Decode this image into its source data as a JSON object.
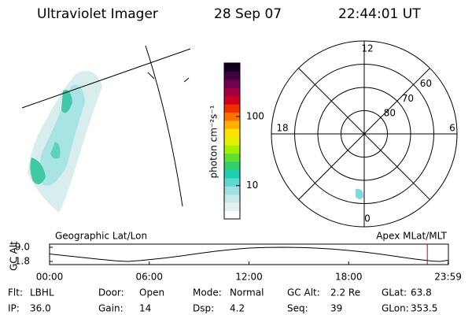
{
  "header": {
    "instrument": "Ultraviolet Imager",
    "date": "28 Sep 07",
    "time": "22:44:01 UT"
  },
  "colorbar": {
    "label": "photon cm⁻²s⁻¹",
    "log": true,
    "lim": [
      3.3,
      594
    ],
    "ticks": [
      10,
      100
    ],
    "colors": [
      "#ffffff",
      "#e6f0f0",
      "#c8e8e8",
      "#a0e0e0",
      "#60d8d0",
      "#20d0b0",
      "#30d070",
      "#60e030",
      "#a0f000",
      "#e0f000",
      "#ffe000",
      "#ffb000",
      "#ff7000",
      "#f03000",
      "#d00020",
      "#a00040",
      "#700050",
      "#400040",
      "#100020"
    ]
  },
  "polar": {
    "mlt_labels": [
      {
        "hour": 12,
        "label": "12"
      },
      {
        "hour": 18,
        "label": "18"
      },
      {
        "hour": 6,
        "label": "6"
      },
      {
        "hour": 0,
        "label": "0"
      }
    ],
    "mlat_range": [
      50,
      90
    ],
    "mlat_ticks": [
      60,
      70,
      80
    ]
  },
  "orbit": {
    "left_label": "Geographic Lat/Lon",
    "right_label": "Apex MLat/MLT",
    "y_label": "GC Alt",
    "ylim": [
      1.8,
      9.0
    ],
    "yticks": [
      {
        "value": 9.0,
        "label": "9.0"
      },
      1.8
    ],
    "xlim": [
      0,
      24
    ],
    "xticks": [
      {
        "value": 0,
        "label": "00:00"
      },
      {
        "value": 6,
        "label": "06:00"
      },
      {
        "value": 12,
        "label": "12:00"
      },
      {
        "value": 18,
        "label": "18:00"
      },
      {
        "value": 23.98,
        "label": "23:59"
      }
    ],
    "hours": [
      0,
      1,
      2,
      3,
      4,
      4.7,
      5.5,
      7,
      8,
      9,
      10,
      11,
      12,
      13,
      14,
      15,
      16,
      17,
      18,
      19,
      20,
      21,
      22,
      23,
      23.5,
      23.98
    ],
    "alt": [
      5.6,
      4.7,
      3.8,
      2.9,
      2.1,
      1.8,
      2.3,
      3.6,
      4.7,
      5.9,
      7.0,
      7.9,
      8.6,
      8.9,
      9.0,
      8.9,
      8.6,
      8.1,
      7.4,
      6.5,
      5.4,
      4.2,
      3.0,
      2.0,
      1.8,
      2.4
    ],
    "current_hour": 22.73,
    "current_color": "#cc0000"
  },
  "info": [
    [
      {
        "label": "Flt:",
        "value": "LBHL"
      },
      {
        "label": "Door:",
        "value": "Open"
      },
      {
        "label": "Mode:",
        "value": "Normal"
      },
      {
        "label": "GC Alt:",
        "value": "2.2 Re"
      },
      {
        "label": "GLat:",
        "value": "63.8"
      }
    ],
    [
      {
        "label": "IP:",
        "value": "36.0"
      },
      {
        "label": "Gain:",
        "value": "14"
      },
      {
        "label": "Dsp:",
        "value": "4.2"
      },
      {
        "label": "Seq:",
        "value": "39"
      },
      {
        "label": "GLon:",
        "value": "353.5"
      }
    ]
  ]
}
